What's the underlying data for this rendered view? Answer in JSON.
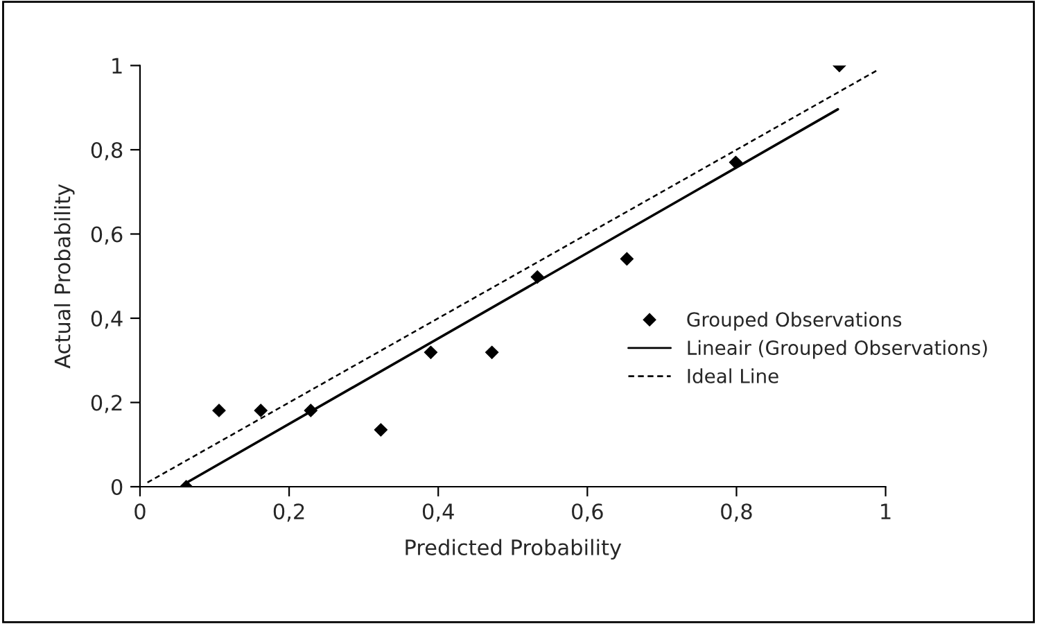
{
  "chart_data": {
    "type": "scatter",
    "xlabel": "Predicted Probability",
    "ylabel": "Actual Probability",
    "xlim": [
      0,
      1
    ],
    "ylim": [
      0,
      1
    ],
    "xticks": [
      0,
      {
        "value": 0.2,
        "label": "0,2"
      },
      {
        "value": 0.4,
        "label": "0,4"
      },
      {
        "value": 0.6,
        "label": "0,6"
      },
      {
        "value": 0.8,
        "label": "0,8"
      },
      1
    ],
    "yticks": [
      0,
      {
        "value": 0.2,
        "label": "0,2"
      },
      {
        "value": 0.4,
        "label": "0,4"
      },
      {
        "value": 0.6,
        "label": "0,6"
      },
      {
        "value": 0.8,
        "label": "0,8"
      },
      1
    ],
    "grid": false,
    "legend": "right",
    "series": [
      {
        "name": "Grouped Observations",
        "marker": "diamond",
        "color": "#000000",
        "x": [
          0.062,
          0.106,
          0.162,
          0.229,
          0.323,
          0.39,
          0.472,
          0.533,
          0.653,
          0.799,
          0.938
        ],
        "values": [
          0,
          0.181,
          0.181,
          0.181,
          0.135,
          0.319,
          0.319,
          0.498,
          0.541,
          0.77,
          1
        ]
      },
      {
        "name": "Lineair (Grouped Observations)",
        "type": "line",
        "line_style": "solid",
        "color": "#000000",
        "x": [
          0.062,
          0.936
        ],
        "values": [
          0.009,
          0.896
        ]
      },
      {
        "name": "Ideal Line",
        "type": "line",
        "line_style": "dashed",
        "color": "#000000",
        "x": [
          0.01,
          0.99
        ],
        "values": [
          0.01,
          0.99
        ]
      }
    ]
  }
}
